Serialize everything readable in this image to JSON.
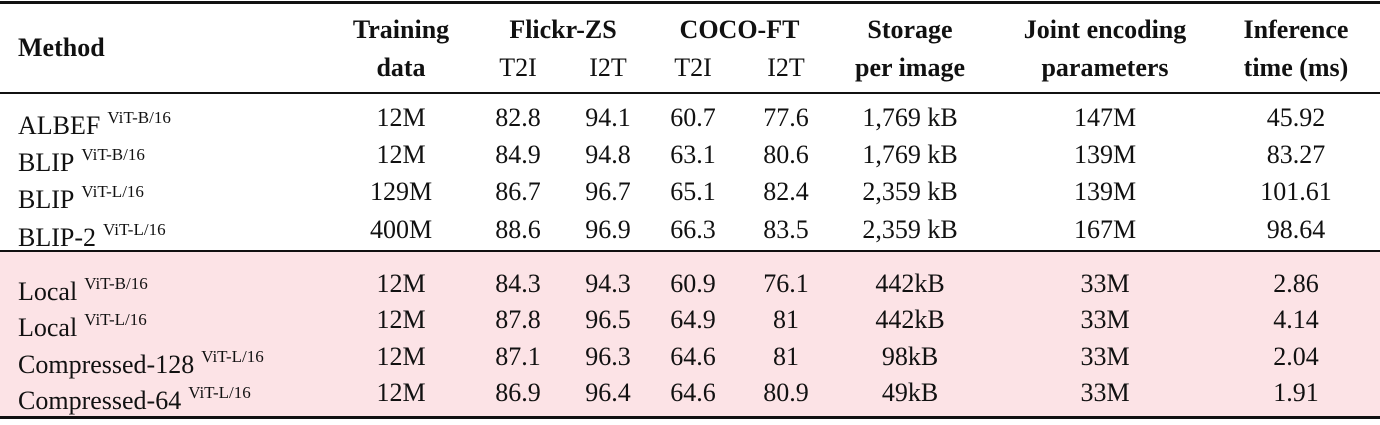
{
  "table": {
    "header": {
      "method": "Method",
      "training": [
        "Training",
        "data"
      ],
      "flickr": "Flickr-ZS",
      "coco": "COCO-FT",
      "subcolumns": [
        "T2I",
        "I2T",
        "T2I",
        "I2T"
      ],
      "storage": [
        "Storage",
        "per image"
      ],
      "joint": [
        "Joint encoding",
        "parameters"
      ],
      "inference": [
        "Inference",
        "time (ms)"
      ]
    },
    "groups": [
      [
        {
          "method": "ALBEF",
          "backbone": "ViT-B/16",
          "cells": [
            "12M",
            "82.8",
            "94.1",
            "60.7",
            "77.6",
            "1,769 kB",
            "147M",
            "45.92"
          ]
        },
        {
          "method": "BLIP",
          "backbone": "ViT-B/16",
          "cells": [
            "12M",
            "84.9",
            "94.8",
            "63.1",
            "80.6",
            "1,769 kB",
            "139M",
            "83.27"
          ]
        },
        {
          "method": "BLIP",
          "backbone": "ViT-L/16",
          "cells": [
            "129M",
            "86.7",
            "96.7",
            "65.1",
            "82.4",
            "2,359 kB",
            "139M",
            "101.61"
          ]
        },
        {
          "method": "BLIP-2",
          "backbone": "ViT-L/16",
          "cells": [
            "400M",
            "88.6",
            "96.9",
            "66.3",
            "83.5",
            "2,359 kB",
            "167M",
            "98.64"
          ]
        }
      ],
      [
        {
          "method": "Local",
          "backbone": "ViT-B/16",
          "cells": [
            "12M",
            "84.3",
            "94.3",
            "60.9",
            "76.1",
            "442kB",
            "33M",
            "2.86"
          ]
        },
        {
          "method": "Local",
          "backbone": "ViT-L/16",
          "cells": [
            "12M",
            "87.8",
            "96.5",
            "64.9",
            "81",
            "442kB",
            "33M",
            "4.14"
          ]
        },
        {
          "method": "Compressed-128",
          "backbone": "ViT-L/16",
          "cells": [
            "12M",
            "87.1",
            "96.3",
            "64.6",
            "81",
            "98kB",
            "33M",
            "2.04"
          ]
        },
        {
          "method": "Compressed-64",
          "backbone": "ViT-L/16",
          "cells": [
            "12M",
            "86.9",
            "96.4",
            "64.6",
            "80.9",
            "49kB",
            "33M",
            "1.91"
          ]
        }
      ]
    ]
  }
}
